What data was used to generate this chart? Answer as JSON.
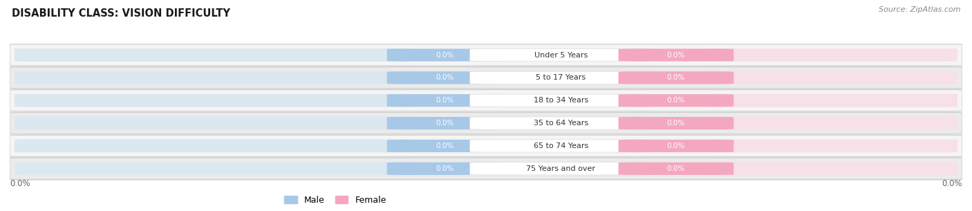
{
  "title": "DISABILITY CLASS: VISION DIFFICULTY",
  "source": "Source: ZipAtlas.com",
  "categories": [
    "Under 5 Years",
    "5 to 17 Years",
    "18 to 34 Years",
    "35 to 64 Years",
    "65 to 74 Years",
    "75 Years and over"
  ],
  "male_values": [
    "0.0%",
    "0.0%",
    "0.0%",
    "0.0%",
    "0.0%",
    "0.0%"
  ],
  "female_values": [
    "0.0%",
    "0.0%",
    "0.0%",
    "0.0%",
    "0.0%",
    "0.0%"
  ],
  "male_color": "#a8c8e8",
  "female_color": "#f4a8c0",
  "male_label": "Male",
  "female_label": "Female",
  "bar_bg_left_color": "#dce8f0",
  "bar_bg_right_color": "#f8e0e8",
  "row_bg_even": "#f5f5f5",
  "row_bg_odd": "#ebebeb",
  "title_color": "#1a1a1a",
  "source_color": "#888888",
  "label_color": "#333333",
  "value_text_color": "#ffffff",
  "bottom_axis_color": "#666666",
  "bottom_left_label": "0.0%",
  "bottom_right_label": "0.0%"
}
